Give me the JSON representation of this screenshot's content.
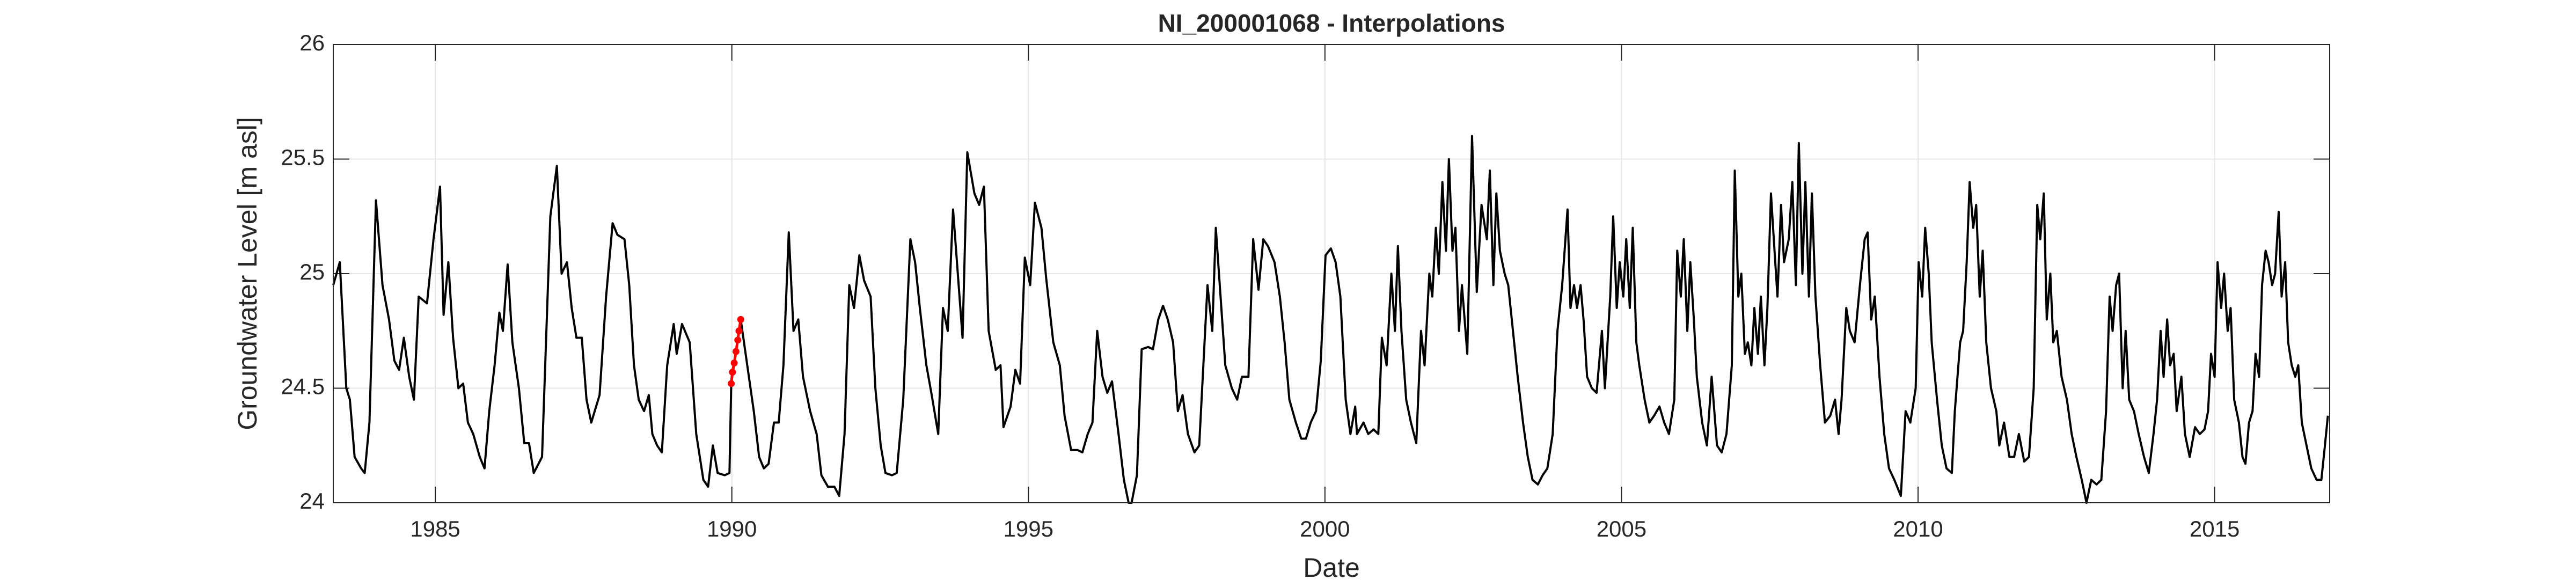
{
  "chart_data": {
    "type": "line",
    "title": "NI_200001068 - Interpolations",
    "xlabel": "Date",
    "ylabel": "Groundwater Level [m asl]",
    "xlim": [
      1983.28,
      2016.94
    ],
    "xticks": [
      1985,
      1990,
      1995,
      2000,
      2005,
      2010,
      2015
    ],
    "ylim": [
      24,
      26
    ],
    "yticks": [
      24,
      24.5,
      25,
      25.5,
      26
    ],
    "grid": true,
    "series": [
      {
        "color": "#000000",
        "x": [
          1983.28,
          1983.39,
          1983.5,
          1983.56,
          1983.64,
          1983.75,
          1983.81,
          1983.89,
          1984.0,
          1984.11,
          1984.22,
          1984.31,
          1984.39,
          1984.47,
          1984.56,
          1984.64,
          1984.72,
          1984.86,
          1984.97,
          1985.08,
          1985.14,
          1985.22,
          1985.3,
          1985.39,
          1985.47,
          1985.55,
          1985.64,
          1985.75,
          1985.83,
          1985.91,
          1986.0,
          1986.08,
          1986.14,
          1986.22,
          1986.3,
          1986.41,
          1986.5,
          1986.58,
          1986.66,
          1986.8,
          1986.94,
          1987.05,
          1987.13,
          1987.22,
          1987.3,
          1987.38,
          1987.47,
          1987.55,
          1987.63,
          1987.77,
          1987.88,
          1987.99,
          1988.07,
          1988.19,
          1988.27,
          1988.35,
          1988.43,
          1988.52,
          1988.6,
          1988.66,
          1988.74,
          1988.82,
          1988.91,
          1989.02,
          1989.07,
          1989.16,
          1989.29,
          1989.4,
          1989.52,
          1989.6,
          1989.68,
          1989.76,
          1989.88,
          1989.96,
          1989.99,
          1990.15,
          1990.26,
          1990.37,
          1990.46,
          1990.54,
          1990.62,
          1990.71,
          1990.79,
          1990.87,
          1990.96,
          1991.04,
          1991.12,
          1991.2,
          1991.32,
          1991.43,
          1991.51,
          1991.62,
          1991.73,
          1991.81,
          1991.9,
          1991.98,
          1992.06,
          1992.15,
          1992.23,
          1992.34,
          1992.42,
          1992.51,
          1992.59,
          1992.7,
          1992.78,
          1992.89,
          1993.01,
          1993.09,
          1993.17,
          1993.28,
          1993.37,
          1993.48,
          1993.56,
          1993.64,
          1993.73,
          1993.81,
          1993.89,
          1993.97,
          1994.09,
          1994.17,
          1994.25,
          1994.33,
          1994.45,
          1994.53,
          1994.58,
          1994.7,
          1994.78,
          1994.86,
          1994.94,
          1995.03,
          1995.11,
          1995.22,
          1995.3,
          1995.42,
          1995.53,
          1995.61,
          1995.72,
          1995.83,
          1995.91,
          1996.0,
          1996.08,
          1996.16,
          1996.25,
          1996.33,
          1996.41,
          1996.52,
          1996.61,
          1996.69,
          1996.74,
          1996.83,
          1996.91,
          1997.02,
          1997.1,
          1997.19,
          1997.27,
          1997.35,
          1997.44,
          1997.52,
          1997.6,
          1997.69,
          1997.8,
          1997.88,
          1997.96,
          1998.02,
          1998.1,
          1998.16,
          1998.24,
          1998.32,
          1998.43,
          1998.52,
          1998.6,
          1998.71,
          1998.79,
          1998.88,
          1998.96,
          1999.04,
          1999.15,
          1999.24,
          1999.32,
          1999.4,
          1999.51,
          1999.6,
          1999.68,
          1999.76,
          1999.85,
          1999.93,
          2000.01,
          2000.1,
          2000.18,
          2000.26,
          2000.35,
          2000.43,
          2000.51,
          2000.54,
          2000.65,
          2000.73,
          2000.82,
          2000.9,
          2000.96,
          2001.04,
          2001.12,
          2001.18,
          2001.23,
          2001.29,
          2001.37,
          2001.45,
          2001.54,
          2001.62,
          2001.68,
          2001.76,
          2001.81,
          2001.87,
          2001.92,
          2001.98,
          2002.04,
          2002.09,
          2002.15,
          2002.2,
          2002.26,
          2002.31,
          2002.4,
          2002.48,
          2002.56,
          2002.64,
          2002.73,
          2002.78,
          2002.84,
          2002.89,
          2002.95,
          2003.03,
          2003.09,
          2003.17,
          2003.25,
          2003.34,
          2003.42,
          2003.5,
          2003.59,
          2003.67,
          2003.75,
          2003.84,
          2003.92,
          2004.0,
          2004.09,
          2004.14,
          2004.2,
          2004.25,
          2004.31,
          2004.36,
          2004.42,
          2004.5,
          2004.58,
          2004.67,
          2004.72,
          2004.81,
          2004.86,
          2004.92,
          2004.97,
          2005.03,
          2005.08,
          2005.14,
          2005.19,
          2005.25,
          2005.3,
          2005.39,
          2005.47,
          2005.55,
          2005.64,
          2005.72,
          2005.8,
          2005.89,
          2005.94,
          2006.0,
          2006.05,
          2006.11,
          2006.16,
          2006.22,
          2006.27,
          2006.36,
          2006.44,
          2006.52,
          2006.61,
          2006.69,
          2006.77,
          2006.86,
          2006.91,
          2006.97,
          2007.02,
          2007.08,
          2007.13,
          2007.19,
          2007.24,
          2007.3,
          2007.35,
          2007.41,
          2007.46,
          2007.52,
          2007.58,
          2007.63,
          2007.69,
          2007.74,
          2007.82,
          2007.88,
          2007.94,
          2007.99,
          2008.05,
          2008.1,
          2008.16,
          2008.21,
          2008.27,
          2008.35,
          2008.43,
          2008.52,
          2008.6,
          2008.66,
          2008.71,
          2008.79,
          2008.85,
          2008.93,
          2009.02,
          2009.1,
          2009.15,
          2009.21,
          2009.27,
          2009.35,
          2009.43,
          2009.51,
          2009.6,
          2009.71,
          2009.79,
          2009.87,
          2009.96,
          2010.01,
          2010.07,
          2010.12,
          2010.18,
          2010.23,
          2010.32,
          2010.4,
          2010.48,
          2010.57,
          2010.62,
          2010.71,
          2010.76,
          2010.82,
          2010.87,
          2010.93,
          2010.98,
          2011.04,
          2011.09,
          2011.15,
          2011.23,
          2011.32,
          2011.37,
          2011.45,
          2011.54,
          2011.62,
          2011.7,
          2011.79,
          2011.87,
          2011.95,
          2012.01,
          2012.06,
          2012.12,
          2012.17,
          2012.23,
          2012.28,
          2012.34,
          2012.42,
          2012.51,
          2012.59,
          2012.67,
          2012.76,
          2012.84,
          2012.92,
          2013.01,
          2013.09,
          2013.17,
          2013.23,
          2013.28,
          2013.34,
          2013.39,
          2013.45,
          2013.5,
          2013.56,
          2013.64,
          2013.72,
          2013.81,
          2013.89,
          2013.97,
          2014.03,
          2014.09,
          2014.14,
          2014.2,
          2014.25,
          2014.31,
          2014.36,
          2014.44,
          2014.5,
          2014.58,
          2014.67,
          2014.75,
          2014.83,
          2014.89,
          2014.94,
          2015.0,
          2015.05,
          2015.11,
          2015.16,
          2015.22,
          2015.27,
          2015.33,
          2015.41,
          2015.47,
          2015.52,
          2015.58,
          2015.64,
          2015.69,
          2015.75,
          2015.8,
          2015.86,
          2015.91,
          2015.97,
          2016.02,
          2016.08,
          2016.13,
          2016.19,
          2016.24,
          2016.3,
          2016.36,
          2016.41,
          2016.47,
          2016.55,
          2016.63,
          2016.72,
          2016.8,
          2016.86,
          2016.91
        ],
        "values": [
          24.95,
          25.05,
          24.5,
          24.45,
          24.2,
          24.15,
          24.13,
          24.35,
          25.32,
          24.95,
          24.8,
          24.62,
          24.58,
          24.72,
          24.55,
          24.45,
          24.9,
          24.87,
          25.15,
          25.38,
          24.82,
          25.05,
          24.72,
          24.5,
          24.52,
          24.35,
          24.3,
          24.2,
          24.15,
          24.4,
          24.6,
          24.83,
          24.75,
          25.04,
          24.7,
          24.5,
          24.26,
          24.26,
          24.13,
          24.2,
          25.25,
          25.47,
          25.0,
          25.05,
          24.85,
          24.72,
          24.72,
          24.45,
          24.35,
          24.47,
          24.9,
          25.22,
          25.17,
          25.15,
          24.95,
          24.6,
          24.45,
          24.4,
          24.47,
          24.3,
          24.25,
          24.22,
          24.6,
          24.78,
          24.65,
          24.78,
          24.7,
          24.3,
          24.1,
          24.07,
          24.25,
          24.13,
          24.12,
          24.13,
          24.52,
          24.8,
          24.6,
          24.4,
          24.2,
          24.15,
          24.17,
          24.35,
          24.35,
          24.6,
          25.18,
          24.75,
          24.8,
          24.55,
          24.4,
          24.3,
          24.12,
          24.07,
          24.07,
          24.03,
          24.3,
          24.95,
          24.85,
          25.08,
          24.97,
          24.9,
          24.5,
          24.25,
          24.13,
          24.12,
          24.13,
          24.45,
          25.15,
          25.05,
          24.85,
          24.6,
          24.47,
          24.3,
          24.85,
          24.75,
          25.28,
          25.0,
          24.72,
          25.53,
          25.35,
          25.3,
          25.38,
          24.75,
          24.58,
          24.6,
          24.33,
          24.42,
          24.58,
          24.52,
          25.07,
          24.95,
          25.31,
          25.2,
          24.98,
          24.7,
          24.6,
          24.38,
          24.23,
          24.23,
          24.22,
          24.3,
          24.35,
          24.75,
          24.55,
          24.48,
          24.53,
          24.3,
          24.1,
          24.0,
          24.0,
          24.12,
          24.67,
          24.68,
          24.67,
          24.8,
          24.86,
          24.8,
          24.7,
          24.4,
          24.47,
          24.3,
          24.22,
          24.25,
          24.65,
          24.95,
          24.75,
          25.2,
          24.9,
          24.6,
          24.5,
          24.45,
          24.55,
          24.55,
          25.15,
          24.93,
          25.15,
          25.12,
          25.05,
          24.9,
          24.7,
          24.45,
          24.35,
          24.28,
          24.28,
          24.35,
          24.4,
          24.62,
          25.08,
          25.11,
          25.05,
          24.9,
          24.45,
          24.3,
          24.42,
          24.3,
          24.35,
          24.3,
          24.32,
          24.3,
          24.72,
          24.6,
          25.0,
          24.75,
          25.12,
          24.75,
          24.45,
          24.35,
          24.26,
          24.75,
          24.6,
          25.0,
          24.9,
          25.2,
          25.0,
          25.4,
          25.1,
          25.5,
          25.1,
          25.2,
          24.75,
          24.95,
          24.65,
          25.6,
          24.92,
          25.3,
          25.15,
          25.45,
          24.95,
          25.35,
          25.1,
          25.0,
          24.95,
          24.75,
          24.55,
          24.35,
          24.2,
          24.1,
          24.08,
          24.12,
          24.15,
          24.3,
          24.75,
          24.95,
          25.28,
          24.85,
          24.95,
          24.85,
          24.95,
          24.8,
          24.55,
          24.5,
          24.48,
          24.75,
          24.5,
          24.9,
          25.25,
          24.85,
          25.05,
          24.9,
          25.15,
          24.85,
          25.2,
          24.7,
          24.6,
          24.45,
          24.35,
          24.38,
          24.42,
          24.35,
          24.3,
          24.45,
          25.1,
          24.9,
          25.15,
          24.75,
          25.05,
          24.8,
          24.55,
          24.35,
          24.25,
          24.55,
          24.25,
          24.22,
          24.3,
          24.6,
          25.45,
          24.9,
          25.0,
          24.65,
          24.7,
          24.6,
          24.85,
          24.65,
          24.9,
          24.6,
          24.85,
          25.35,
          25.1,
          24.9,
          25.3,
          25.05,
          25.15,
          25.4,
          24.95,
          25.57,
          25.0,
          25.4,
          24.9,
          25.35,
          24.9,
          24.6,
          24.35,
          24.38,
          24.45,
          24.3,
          24.45,
          24.85,
          24.75,
          24.7,
          24.95,
          25.15,
          25.18,
          24.8,
          24.9,
          24.55,
          24.3,
          24.15,
          24.1,
          24.03,
          24.4,
          24.35,
          24.5,
          25.05,
          24.9,
          25.2,
          25.0,
          24.7,
          24.45,
          24.25,
          24.15,
          24.13,
          24.4,
          24.7,
          24.75,
          25.05,
          25.4,
          25.2,
          25.3,
          24.9,
          25.1,
          24.7,
          24.5,
          24.4,
          24.25,
          24.35,
          24.2,
          24.2,
          24.3,
          24.18,
          24.2,
          24.5,
          25.3,
          25.15,
          25.35,
          24.8,
          25.0,
          24.7,
          24.75,
          24.55,
          24.45,
          24.3,
          24.2,
          24.1,
          24.0,
          24.1,
          24.08,
          24.1,
          24.4,
          24.9,
          24.75,
          24.95,
          25.0,
          24.5,
          24.75,
          24.45,
          24.4,
          24.3,
          24.2,
          24.13,
          24.3,
          24.45,
          24.75,
          24.55,
          24.8,
          24.6,
          24.65,
          24.4,
          24.55,
          24.3,
          24.2,
          24.33,
          24.3,
          24.32,
          24.4,
          24.65,
          24.55,
          25.05,
          24.85,
          25.0,
          24.75,
          24.85,
          24.45,
          24.35,
          24.2,
          24.17,
          24.35,
          24.4,
          24.65,
          24.55,
          24.95,
          25.1,
          25.05,
          24.95,
          25.0,
          25.27,
          24.9,
          25.05,
          24.7,
          24.6,
          24.55,
          24.6,
          24.35,
          24.25,
          24.15,
          24.1,
          24.1,
          24.25,
          24.38
        ]
      },
      {
        "color": "#ff0000",
        "marker": "o",
        "x": [
          1989.99,
          1990.01,
          1990.04,
          1990.07,
          1990.1,
          1990.12,
          1990.15
        ],
        "values": [
          24.52,
          24.57,
          24.61,
          24.66,
          24.71,
          24.75,
          24.8
        ]
      }
    ]
  }
}
